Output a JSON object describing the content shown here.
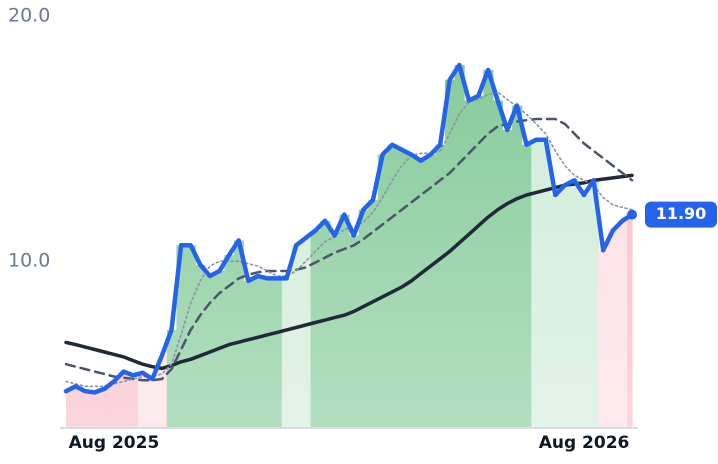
{
  "chart_data": {
    "type": "line",
    "categories": [
      null,
      null,
      null,
      null,
      null,
      "Aug 2025",
      null,
      null,
      null,
      null,
      null,
      null,
      null,
      null,
      null,
      null,
      null,
      null,
      null,
      null,
      null,
      null,
      null,
      null,
      null,
      null,
      null,
      null,
      null,
      null,
      null,
      null,
      null,
      null,
      null,
      null,
      null,
      null,
      null,
      null,
      null,
      null,
      null,
      null,
      null,
      null,
      null,
      null,
      null,
      null,
      null,
      null,
      null,
      null,
      "Aug 2026",
      null,
      null,
      null,
      null,
      null
    ],
    "series": [
      {
        "color": "#2563eb",
        "style": "solid-price",
        "values": [
          4.7,
          4.9,
          4.7,
          4.65,
          4.8,
          5.1,
          5.5,
          5.35,
          5.45,
          5.2,
          6.15,
          7.2,
          10.65,
          10.65,
          9.85,
          9.4,
          9.6,
          10.25,
          10.85,
          9.2,
          9.4,
          9.3,
          9.3,
          9.3,
          10.65,
          10.95,
          11.25,
          11.65,
          11.05,
          11.9,
          11.05,
          12.1,
          12.5,
          14.35,
          14.75,
          14.55,
          14.35,
          14.1,
          14.35,
          14.75,
          17.4,
          18.0,
          16.55,
          16.75,
          17.8,
          16.55,
          15.35,
          16.35,
          14.75,
          14.95,
          14.95,
          12.7,
          13.1,
          13.3,
          12.7,
          13.3,
          10.45,
          11.25,
          11.65,
          11.9
        ],
        "value_labels": [
          null,
          null,
          null,
          null,
          null,
          null,
          null,
          null,
          null,
          null,
          null,
          null,
          null,
          null,
          null,
          null,
          null,
          null,
          null,
          null,
          null,
          null,
          null,
          null,
          null,
          null,
          null,
          null,
          null,
          null,
          null,
          null,
          null,
          null,
          null,
          null,
          null,
          null,
          null,
          null,
          null,
          null,
          null,
          null,
          null,
          null,
          null,
          null,
          null,
          null,
          null,
          null,
          null,
          null,
          null,
          null,
          null,
          null,
          null,
          "11.90"
        ],
        "area_colors": [
          "#f7b9c6",
          "#f7b9c6",
          "#f7b9c6",
          "#f7b9c6",
          "#f7b9c6",
          "#f7b9c6",
          "#f7b9c6",
          "#f7b9c6",
          "#fddbe2",
          "#fddbe2",
          "#fddbe2",
          "#7ec894",
          "#7ec894",
          "#7ec894",
          "#7ec894",
          "#7ec894",
          "#7ec894",
          "#7ec894",
          "#7ec894",
          "#7ec894",
          "#7ec894",
          "#7ec894",
          "#7ec894",
          "#cdebd6",
          "#cdebd6",
          "#cdebd6",
          "#7ec894",
          "#7ec894",
          "#7ec894",
          "#7ec894",
          "#7ec894",
          "#7ec894",
          "#7ec894",
          "#7ec894",
          "#7ec894",
          "#7ec894",
          "#7ec894",
          "#7ec894",
          "#7ec894",
          "#7ec894",
          "#7ec894",
          "#7ec894",
          "#7ec894",
          "#7ec894",
          "#7ec894",
          "#7ec894",
          "#7ec894",
          "#7ec894",
          "#7ec894",
          "#cdebd6",
          "#cdebd6",
          "#cdebd6",
          "#cdebd6",
          "#cdebd6",
          "#cdebd6",
          "#cdebd6",
          "#fddbe2",
          "#fddbe2",
          "#fddbe2",
          "#f7b9c6"
        ]
      },
      {
        "color": "#8a93a6",
        "style": "dotted",
        "values": [
          5.1,
          5.0,
          4.9,
          4.9,
          4.9,
          5.0,
          5.1,
          5.2,
          5.3,
          5.3,
          5.4,
          5.8,
          7.0,
          8.3,
          9.2,
          9.8,
          10.0,
          10.0,
          10.0,
          9.9,
          9.8,
          9.6,
          9.4,
          9.4,
          9.6,
          10.0,
          10.4,
          10.8,
          11.0,
          11.3,
          11.4,
          11.6,
          12.0,
          12.6,
          13.3,
          13.9,
          14.3,
          14.4,
          14.4,
          14.5,
          15.2,
          16.0,
          16.5,
          16.6,
          16.8,
          16.9,
          16.6,
          16.3,
          16.0,
          15.6,
          15.2,
          14.5,
          13.9,
          13.5,
          13.3,
          13.1,
          12.6,
          12.3,
          12.2,
          12.1
        ]
      },
      {
        "color": "#4b5567",
        "style": "dashed",
        "values": [
          5.8,
          5.7,
          5.6,
          5.5,
          5.4,
          5.3,
          5.25,
          5.2,
          5.15,
          5.15,
          5.2,
          5.6,
          6.4,
          7.2,
          7.8,
          8.3,
          8.7,
          9.0,
          9.3,
          9.45,
          9.55,
          9.6,
          9.6,
          9.6,
          9.65,
          9.75,
          9.95,
          10.15,
          10.35,
          10.5,
          10.65,
          10.9,
          11.2,
          11.5,
          11.8,
          12.1,
          12.4,
          12.7,
          13.0,
          13.3,
          13.6,
          14.0,
          14.4,
          14.8,
          15.2,
          15.5,
          15.6,
          15.7,
          15.75,
          15.8,
          15.8,
          15.8,
          15.6,
          15.2,
          14.8,
          14.5,
          14.2,
          13.9,
          13.6,
          13.3
        ]
      },
      {
        "color": "#1f2937",
        "style": "solid",
        "values": [
          6.69,
          6.6,
          6.5,
          6.4,
          6.3,
          6.2,
          6.1,
          5.95,
          5.8,
          5.7,
          5.63,
          5.75,
          5.9,
          6.0,
          6.15,
          6.3,
          6.45,
          6.6,
          6.7,
          6.8,
          6.9,
          7.0,
          7.1,
          7.2,
          7.3,
          7.4,
          7.5,
          7.6,
          7.7,
          7.8,
          7.95,
          8.15,
          8.35,
          8.55,
          8.75,
          8.95,
          9.2,
          9.5,
          9.8,
          10.1,
          10.4,
          10.75,
          11.1,
          11.45,
          11.8,
          12.1,
          12.35,
          12.55,
          12.7,
          12.8,
          12.9,
          13.0,
          13.1,
          13.15,
          13.2,
          13.3,
          13.35,
          13.4,
          13.45,
          13.5
        ]
      }
    ],
    "ylim": [
      3.2,
      20
    ],
    "yticks": [
      {
        "value": 10,
        "label": "10.0"
      },
      {
        "value": 20,
        "label": "20.0"
      }
    ],
    "grid": false
  }
}
